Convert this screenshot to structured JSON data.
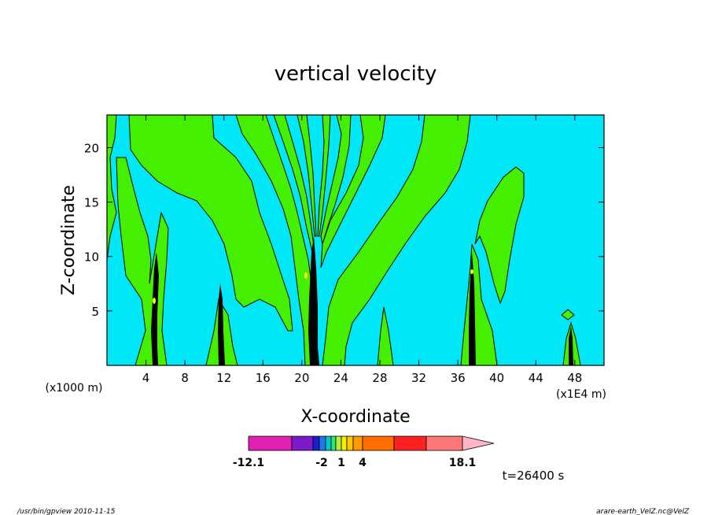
{
  "chart_data": {
    "type": "heatmap",
    "title": "vertical velocity",
    "xlabel": "X-coordinate",
    "ylabel": "Z-coordinate",
    "x_units_left": "(x1000 m)",
    "x_units_right": "(x1E4 m)",
    "xlim": [
      0,
      51
    ],
    "ylim": [
      0,
      23
    ],
    "x_ticks": [
      4,
      8,
      12,
      16,
      20,
      24,
      28,
      32,
      36,
      40,
      44,
      48
    ],
    "y_ticks": [
      5,
      10,
      15,
      20
    ],
    "colorbar": {
      "levels": [
        -12.1,
        -2,
        1,
        4,
        18.1
      ],
      "tick_labels": [
        "-12.1",
        "-2",
        "1",
        "4",
        "18.1"
      ],
      "colors": [
        "#e020b0",
        "#7a1ac8",
        "#1e1ec8",
        "#1a78f0",
        "#00c8c8",
        "#28e878",
        "#b4f03c",
        "#f0f000",
        "#ffc800",
        "#ff9a00",
        "#ff6e00",
        "#ff2020",
        "#ff7878",
        "#ffb4c8"
      ]
    },
    "field_colors": {
      "background": "#00e8f8",
      "updraft": "#44f000",
      "strong": "#000000",
      "peak": "#ffff00"
    },
    "time_label": "t=26400 s"
  },
  "footer": {
    "left": "/usr/bin/gpview   2010-11-15",
    "right": "arare-earth_VelZ.nc@VelZ"
  }
}
